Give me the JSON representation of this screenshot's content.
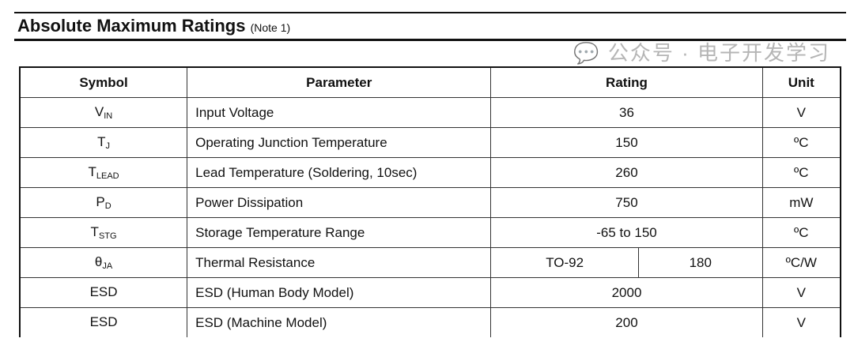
{
  "title": "Absolute Maximum Ratings",
  "note": "(Note 1)",
  "headers": {
    "symbol": "Symbol",
    "parameter": "Parameter",
    "rating": "Rating",
    "unit": "Unit"
  },
  "rows": [
    {
      "sym": "V",
      "sub": "IN",
      "param": "Input Voltage",
      "rating": "36",
      "unit": "V"
    },
    {
      "sym": "T",
      "sub": "J",
      "param": "Operating Junction Temperature",
      "rating": "150",
      "unit": "ºC"
    },
    {
      "sym": "T",
      "sub": "LEAD",
      "param": "Lead Temperature (Soldering, 10sec)",
      "rating": "260",
      "unit": "ºC"
    },
    {
      "sym": "P",
      "sub": "D",
      "param": "Power Dissipation",
      "rating": "750",
      "unit": "mW"
    },
    {
      "sym": "T",
      "sub": "STG",
      "param": "Storage Temperature Range",
      "rating": "-65 to 150",
      "unit": "ºC"
    },
    {
      "sym": "θ",
      "sub": "JA",
      "param": "Thermal Resistance",
      "package": "TO-92",
      "rating": "180",
      "unit": "ºC/W"
    },
    {
      "sym": "ESD",
      "sub": "",
      "param": "ESD (Human Body Model)",
      "rating": "2000",
      "unit": "V"
    },
    {
      "sym": "ESD",
      "sub": "",
      "param": "ESD (Machine Model)",
      "rating": "200",
      "unit": "V"
    }
  ],
  "watermark": "公众号 · 电子开发学习"
}
